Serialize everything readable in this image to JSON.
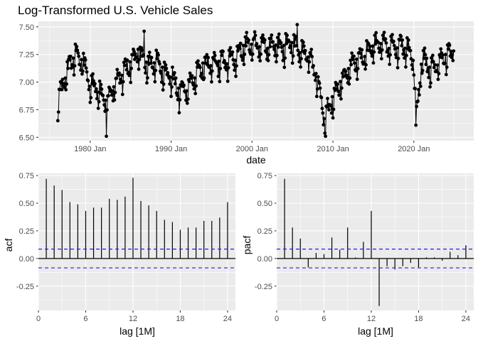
{
  "chart_data": [
    {
      "type": "line",
      "title": "Log-Transformed U.S. Vehicle Sales",
      "xlabel": "date",
      "ylabel": "",
      "x_axis": "monthly dates",
      "x_range": [
        "1976 Jan",
        "2024 Dec"
      ],
      "xtick_labels": [
        "1980 Jan",
        "1990 Jan",
        "2000 Jan",
        "2010 Jan",
        "2020 Jan"
      ],
      "ylim": [
        6.47,
        7.55
      ],
      "yticks": [
        6.5,
        6.75,
        7.0,
        7.25,
        7.5
      ],
      "ytick_labels": [
        "6.50",
        "6.75",
        "7.00",
        "7.25",
        "7.50"
      ],
      "markers": true,
      "color": "#000000",
      "series_anchors_year_value": [
        [
          1976.0,
          6.78
        ],
        [
          1977.0,
          7.05
        ],
        [
          1978.0,
          7.22
        ],
        [
          1979.0,
          7.18
        ],
        [
          1980.0,
          6.95
        ],
        [
          1981.0,
          6.92
        ],
        [
          1982.0,
          6.78
        ],
        [
          1983.0,
          6.95
        ],
        [
          1984.0,
          7.05
        ],
        [
          1985.0,
          7.15
        ],
        [
          1986.0,
          7.25
        ],
        [
          1987.0,
          7.12
        ],
        [
          1988.0,
          7.17
        ],
        [
          1989.0,
          7.08
        ],
        [
          1990.0,
          7.03
        ],
        [
          1991.0,
          6.88
        ],
        [
          1992.0,
          6.93
        ],
        [
          1993.0,
          7.03
        ],
        [
          1994.0,
          7.13
        ],
        [
          1995.0,
          7.13
        ],
        [
          1996.0,
          7.16
        ],
        [
          1997.0,
          7.16
        ],
        [
          1998.0,
          7.21
        ],
        [
          1999.0,
          7.3
        ],
        [
          2000.0,
          7.32
        ],
        [
          2001.0,
          7.3
        ],
        [
          2002.0,
          7.31
        ],
        [
          2003.0,
          7.29
        ],
        [
          2004.0,
          7.3
        ],
        [
          2005.0,
          7.32
        ],
        [
          2006.0,
          7.27
        ],
        [
          2007.0,
          7.23
        ],
        [
          2008.0,
          7.03
        ],
        [
          2009.0,
          6.65
        ],
        [
          2010.0,
          6.83
        ],
        [
          2011.0,
          6.97
        ],
        [
          2012.0,
          7.09
        ],
        [
          2013.0,
          7.18
        ],
        [
          2014.0,
          7.23
        ],
        [
          2015.0,
          7.3
        ],
        [
          2016.0,
          7.33
        ],
        [
          2017.0,
          7.31
        ],
        [
          2018.0,
          7.3
        ],
        [
          2019.0,
          7.29
        ],
        [
          2020.0,
          7.18
        ],
        [
          2020.3,
          6.61
        ],
        [
          2021.0,
          7.2
        ],
        [
          2022.0,
          7.08
        ],
        [
          2023.0,
          7.15
        ],
        [
          2024.0,
          7.22
        ],
        [
          2024.95,
          7.24
        ]
      ]
    },
    {
      "type": "bar",
      "ylabel": "acf",
      "xlabel": "lag [1M]",
      "lags": [
        1,
        2,
        3,
        4,
        5,
        6,
        7,
        8,
        9,
        10,
        11,
        12,
        13,
        14,
        15,
        16,
        17,
        18,
        19,
        20,
        21,
        22,
        23,
        24
      ],
      "values": [
        0.72,
        0.66,
        0.62,
        0.51,
        0.49,
        0.43,
        0.46,
        0.46,
        0.54,
        0.53,
        0.56,
        0.73,
        0.52,
        0.48,
        0.43,
        0.35,
        0.33,
        0.26,
        0.28,
        0.28,
        0.34,
        0.34,
        0.37,
        0.51
      ],
      "confidence_band": 0.085,
      "ylim": [
        -0.47,
        0.77
      ],
      "xlim": [
        0,
        25
      ],
      "yticks": [
        -0.25,
        0.0,
        0.25,
        0.5,
        0.75
      ],
      "ytick_labels": [
        "-0.25",
        "0.00",
        "0.25",
        "0.50",
        "0.75"
      ],
      "xticks": [
        0,
        6,
        12,
        18,
        24
      ],
      "xtick_labels": [
        "0",
        "6",
        "12",
        "18",
        "24"
      ]
    },
    {
      "type": "bar",
      "ylabel": "pacf",
      "xlabel": "lag [1M]",
      "lags": [
        1,
        2,
        3,
        4,
        5,
        6,
        7,
        8,
        9,
        10,
        11,
        12,
        13,
        14,
        15,
        16,
        17,
        18,
        19,
        20,
        21,
        22,
        23,
        24
      ],
      "values": [
        0.72,
        0.28,
        0.18,
        -0.08,
        0.05,
        0.04,
        0.19,
        0.08,
        0.28,
        0.01,
        0.15,
        0.43,
        -0.43,
        -0.07,
        -0.1,
        -0.07,
        -0.04,
        -0.08,
        0.01,
        0.01,
        -0.02,
        0.06,
        0.03,
        0.12
      ],
      "confidence_band": 0.085,
      "ylim": [
        -0.47,
        0.77
      ],
      "xlim": [
        0,
        25
      ],
      "yticks": [
        -0.25,
        0.0,
        0.25,
        0.5,
        0.75
      ],
      "ytick_labels": [
        "-0.25",
        "0.00",
        "0.25",
        "0.50",
        "0.75"
      ],
      "xticks": [
        0,
        6,
        12,
        18,
        24
      ],
      "xtick_labels": [
        "0",
        "6",
        "12",
        "18",
        "24"
      ]
    }
  ],
  "colors": {
    "series": "#000000",
    "confidence_line": "#1f1fff",
    "panel_background": "#ebebeb",
    "grid": "#ffffff"
  },
  "grid": true,
  "legend": "none"
}
